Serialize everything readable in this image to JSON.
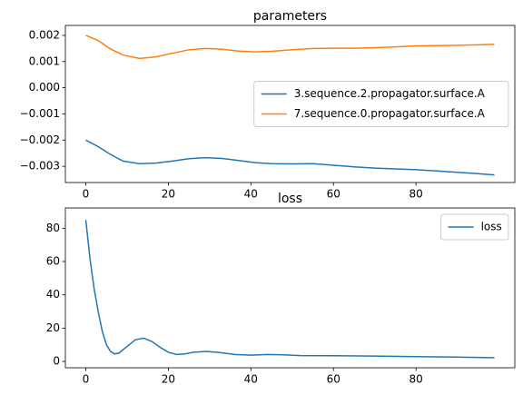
{
  "chart_data": [
    {
      "type": "line",
      "title": "parameters",
      "x": [
        0,
        3,
        6,
        9,
        13,
        17,
        21,
        25,
        29,
        33,
        37,
        41,
        45,
        50,
        55,
        60,
        65,
        70,
        75,
        80,
        85,
        90,
        95,
        99
      ],
      "series": [
        {
          "name": "3.sequence.2.propagator.surface.A",
          "color": "#1f77b4",
          "values": [
            -0.002,
            -0.00225,
            -0.00255,
            -0.0028,
            -0.0029,
            -0.00288,
            -0.0028,
            -0.00271,
            -0.00267,
            -0.0027,
            -0.00278,
            -0.00286,
            -0.0029,
            -0.00291,
            -0.0029,
            -0.00296,
            -0.00302,
            -0.00307,
            -0.0031,
            -0.00313,
            -0.00318,
            -0.00323,
            -0.00328,
            -0.00333
          ]
        },
        {
          "name": "7.sequence.0.propagator.surface.A",
          "color": "#ff7f0e",
          "values": [
            0.002,
            0.0018,
            0.00148,
            0.00125,
            0.00112,
            0.00118,
            0.00132,
            0.00145,
            0.0015,
            0.00147,
            0.0014,
            0.00137,
            0.00139,
            0.00145,
            0.0015,
            0.00151,
            0.00151,
            0.00153,
            0.00156,
            0.0016,
            0.00161,
            0.00162,
            0.00164,
            0.00166
          ]
        }
      ],
      "xlim": [
        -4.95,
        103.95
      ],
      "xticks": [
        0,
        20,
        40,
        60,
        80
      ],
      "ylim": [
        -0.00362,
        0.00238
      ],
      "yticks": [
        {
          "value": -0.003,
          "label": "−0.003"
        },
        {
          "value": -0.002,
          "label": "−0.002"
        },
        {
          "value": -0.001,
          "label": "−0.001"
        },
        {
          "value": 0,
          "label": "0.000"
        },
        0.001,
        0.002
      ],
      "legend": "center right"
    },
    {
      "type": "line",
      "title": "loss",
      "x": [
        0,
        1,
        2,
        3,
        4,
        5,
        6,
        7,
        8,
        10,
        12,
        14,
        16,
        18,
        20,
        22,
        24,
        26,
        29,
        32,
        36,
        40,
        44,
        48,
        52,
        60,
        70,
        80,
        90,
        99
      ],
      "series": [
        {
          "name": "loss",
          "color": "#1f77b4",
          "values": [
            85,
            62,
            44,
            30,
            18,
            10,
            6,
            4.5,
            5,
            9,
            13,
            14,
            12,
            8.5,
            5.5,
            4.2,
            4.5,
            5.5,
            6,
            5.5,
            4.2,
            3.8,
            4.2,
            4,
            3.5,
            3.4,
            3.2,
            2.9,
            2.6,
            2.3
          ]
        }
      ],
      "xlim": [
        -4.95,
        103.95
      ],
      "xticks": [
        0,
        20,
        40,
        60,
        80
      ],
      "ylim": [
        -3.8,
        92.2
      ],
      "yticks": [
        0,
        20,
        40,
        60,
        80
      ],
      "legend": "upper right"
    }
  ]
}
